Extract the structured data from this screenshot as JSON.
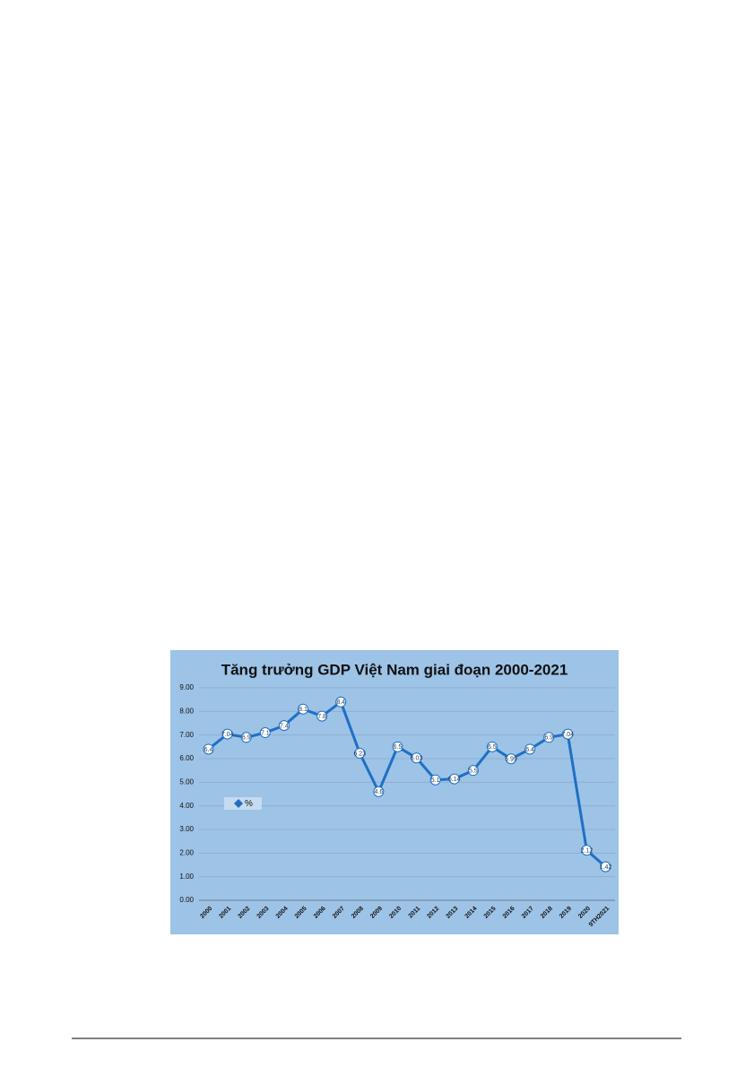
{
  "chart_data": {
    "type": "line",
    "title": "Tăng trưởng GDP Việt Nam giai đoạn 2000-2021",
    "categories": [
      "2000",
      "2001",
      "2002",
      "2003",
      "2004",
      "2005",
      "2006",
      "2007",
      "2008",
      "2009",
      "2010",
      "2011",
      "2012",
      "2013",
      "2014",
      "2015",
      "2016",
      "2017",
      "2018",
      "2019",
      "2020",
      "9TH2021"
    ],
    "series": [
      {
        "name": "%",
        "color": "#1f6fc5",
        "values": [
          6.4,
          7.04,
          6.9,
          7.1,
          7.4,
          8.1,
          7.8,
          8.4,
          6.23,
          4.6,
          6.5,
          6.03,
          5.1,
          5.14,
          5.5,
          6.5,
          5.99,
          6.4,
          6.9,
          7.04,
          2.12,
          1.42
        ]
      }
    ],
    "ylim": [
      0,
      9
    ],
    "yticks": [
      {
        "value": 0,
        "label": "0.00"
      },
      {
        "value": 1,
        "label": "1.00"
      },
      {
        "value": 2,
        "label": "2.00"
      },
      {
        "value": 3,
        "label": "3.00"
      },
      {
        "value": 4,
        "label": "4.00"
      },
      {
        "value": 5,
        "label": "5.00"
      },
      {
        "value": 6,
        "label": "6.00"
      },
      {
        "value": 7,
        "label": "7.00"
      },
      {
        "value": 8,
        "label": "8.00"
      },
      {
        "value": 9,
        "label": "9.00"
      }
    ],
    "grid": true,
    "legend": "left"
  }
}
